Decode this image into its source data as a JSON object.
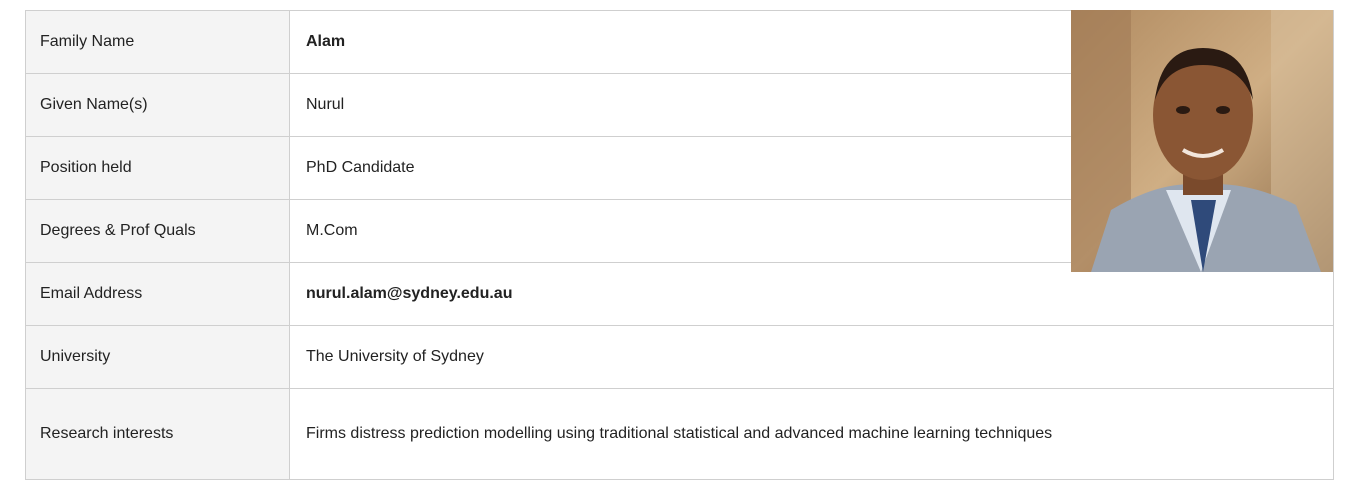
{
  "table": {
    "rows": [
      {
        "label": "Family Name",
        "value": "Alam"
      },
      {
        "label": "Given Name(s)",
        "value": "Nurul"
      },
      {
        "label": "Position held",
        "value": "PhD Candidate"
      },
      {
        "label": "Degrees & Prof Quals",
        "value": "M.Com"
      },
      {
        "label": "Email Address",
        "value": "nurul.alam@sydney.edu.au"
      },
      {
        "label": "University",
        "value": "The University of Sydney"
      },
      {
        "label": "Research interests",
        "value": "Firms distress prediction modelling using traditional statistical and advanced machine learning techniques"
      }
    ]
  }
}
